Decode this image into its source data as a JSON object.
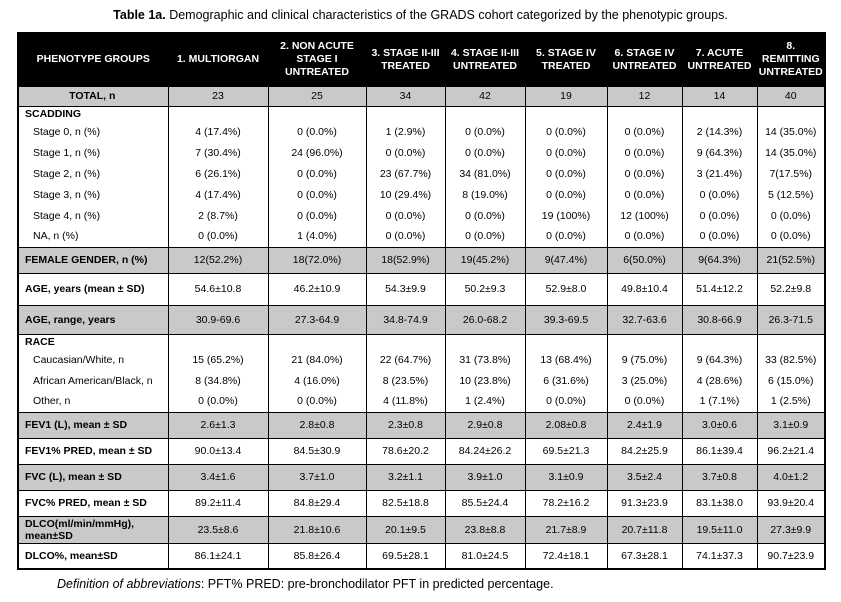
{
  "caption": {
    "label": "Table 1a.",
    "text": " Demographic and clinical characteristics of the GRADS cohort categorized by the phenotypic groups."
  },
  "colors": {
    "header_bg": "#000000",
    "header_text": "#ffffff",
    "row_shade": "#c9c9c9",
    "border": "#000000"
  },
  "table": {
    "header": [
      "PHENOTYPE GROUPS",
      "1. MULTIORGAN",
      "2. NON ACUTE STAGE I UNTREATED",
      "3. STAGE II-III TREATED",
      "4. STAGE II-III UNTREATED",
      "5. STAGE IV TREATED",
      "6. STAGE IV UNTREATED",
      "7. ACUTE UNTREATED",
      "8. REMITTING UNTREATED"
    ],
    "rows": [
      {
        "label": "TOTAL, n",
        "kind": "total",
        "shaded": true,
        "values": [
          "23",
          "25",
          "34",
          "42",
          "19",
          "12",
          "14",
          "40"
        ]
      },
      {
        "label": "SCADDING",
        "kind": "section",
        "shaded": false,
        "values": [
          "",
          "",
          "",
          "",
          "",
          "",
          "",
          ""
        ]
      },
      {
        "label": "Stage 0, n (%)",
        "kind": "sub",
        "shaded": false,
        "values": [
          "4 (17.4%)",
          "0 (0.0%)",
          "1 (2.9%)",
          "0 (0.0%)",
          "0 (0.0%)",
          "0 (0.0%)",
          "2 (14.3%)",
          "14 (35.0%)"
        ]
      },
      {
        "label": "Stage 1, n (%)",
        "kind": "sub",
        "shaded": false,
        "values": [
          "7 (30.4%)",
          "24 (96.0%)",
          "0 (0.0%)",
          "0 (0.0%)",
          "0 (0.0%)",
          "0 (0.0%)",
          "9 (64.3%)",
          "14 (35.0%)"
        ]
      },
      {
        "label": "Stage 2, n (%)",
        "kind": "sub",
        "shaded": false,
        "values": [
          "6 (26.1%)",
          "0 (0.0%)",
          "23 (67.7%)",
          "34 (81.0%)",
          "0 (0.0%)",
          "0 (0.0%)",
          "3 (21.4%)",
          "7(17.5%)"
        ]
      },
      {
        "label": "Stage 3, n (%)",
        "kind": "sub",
        "shaded": false,
        "values": [
          "4 (17.4%)",
          "0 (0.0%)",
          "10 (29.4%)",
          "8 (19.0%)",
          "0 (0.0%)",
          "0 (0.0%)",
          "0 (0.0%)",
          "5 (12.5%)"
        ]
      },
      {
        "label": "Stage 4, n (%)",
        "kind": "sub",
        "shaded": false,
        "values": [
          "2 (8.7%)",
          "0 (0.0%)",
          "0 (0.0%)",
          "0 (0.0%)",
          "19 (100%)",
          "12 (100%)",
          "0 (0.0%)",
          "0 (0.0%)"
        ]
      },
      {
        "label": "NA, n (%)",
        "kind": "sub",
        "shaded": false,
        "values": [
          "0 (0.0%)",
          "1 (4.0%)",
          "0 (0.0%)",
          "0 (0.0%)",
          "0 (0.0%)",
          "0 (0.0%)",
          "0 (0.0%)",
          "0 (0.0%)"
        ]
      },
      {
        "label": "FEMALE GENDER, n (%)",
        "kind": "major",
        "shaded": true,
        "values": [
          "12(52.2%)",
          "18(72.0%)",
          "18(52.9%)",
          "19(45.2%)",
          "9(47.4%)",
          "6(50.0%)",
          "9(64.3%)",
          "21(52.5%)"
        ]
      },
      {
        "label": "AGE, years (mean ± SD)",
        "kind": "tall",
        "shaded": false,
        "values": [
          "54.6±10.8",
          "46.2±10.9",
          "54.3±9.9",
          "50.2±9.3",
          "52.9±8.0",
          "49.8±10.4",
          "51.4±12.2",
          "52.2±9.8"
        ]
      },
      {
        "label": "AGE, range, years",
        "kind": "med",
        "shaded": true,
        "values": [
          "30.9-69.6",
          "27.3-64.9",
          "34.8-74.9",
          "26.0-68.2",
          "39.3-69.5",
          "32.7-63.6",
          "30.8-66.9",
          "26.3-71.5"
        ]
      },
      {
        "label": "RACE",
        "kind": "section",
        "shaded": false,
        "values": [
          "",
          "",
          "",
          "",
          "",
          "",
          "",
          ""
        ]
      },
      {
        "label": "Caucasian/White, n",
        "kind": "sub",
        "shaded": false,
        "values": [
          "15 (65.2%)",
          "21 (84.0%)",
          "22 (64.7%)",
          "31 (73.8%)",
          "13 (68.4%)",
          "9 (75.0%)",
          "9 (64.3%)",
          "33 (82.5%)"
        ]
      },
      {
        "label": "African American/Black, n",
        "kind": "sub",
        "shaded": false,
        "values": [
          "8 (34.8%)",
          "4 (16.0%)",
          "8 (23.5%)",
          "10 (23.8%)",
          "6 (31.6%)",
          "3 (25.0%)",
          "4 (28.6%)",
          "6 (15.0%)"
        ]
      },
      {
        "label": "Other, n",
        "kind": "sub",
        "shaded": false,
        "values": [
          "0 (0.0%)",
          "0 (0.0%)",
          "4 (11.8%)",
          "1 (2.4%)",
          "0 (0.0%)",
          "0 (0.0%)",
          "1 (7.1%)",
          "1 (2.5%)"
        ]
      },
      {
        "label": "FEV1 (L), mean ± SD",
        "kind": "major",
        "shaded": true,
        "values": [
          "2.6±1.3",
          "2.8±0.8",
          "2.3±0.8",
          "2.9±0.8",
          "2.08±0.8",
          "2.4±1.9",
          "3.0±0.6",
          "3.1±0.9"
        ]
      },
      {
        "label": "FEV1% PRED, mean ± SD",
        "kind": "major",
        "shaded": false,
        "values": [
          "90.0±13.4",
          "84.5±30.9",
          "78.6±20.2",
          "84.24±26.2",
          "69.5±21.3",
          "84.2±25.9",
          "86.1±39.4",
          "96.2±21.4"
        ]
      },
      {
        "label": "FVC (L), mean ± SD",
        "kind": "major",
        "shaded": true,
        "values": [
          "3.4±1.6",
          "3.7±1.0",
          "3.2±1.1",
          "3.9±1.0",
          "3.1±0.9",
          "3.5±2.4",
          "3.7±0.8",
          "4.0±1.2"
        ]
      },
      {
        "label": "FVC% PRED, mean ± SD",
        "kind": "major",
        "shaded": false,
        "values": [
          "89.2±11.4",
          "84.8±29.4",
          "82.5±18.8",
          "85.5±24.4",
          "78.2±16.2",
          "91.3±23.9",
          "83.1±38.0",
          "93.9±20.4"
        ]
      },
      {
        "label": "DLCO(ml/min/mmHg), mean±SD",
        "kind": "major",
        "shaded": true,
        "values": [
          "23.5±8.6",
          "21.8±10.6",
          "20.1±9.5",
          "23.8±8.8",
          "21.7±8.9",
          "20.7±11.8",
          "19.5±11.0",
          "27.3±9.9"
        ]
      },
      {
        "label": "DLCO%, mean±SD",
        "kind": "major",
        "shaded": false,
        "values": [
          "86.1±24.1",
          "85.8±26.4",
          "69.5±28.1",
          "81.0±24.5",
          "72.4±18.1",
          "67.3±28.1",
          "74.1±37.3",
          "90.7±23.9"
        ]
      }
    ]
  },
  "footnote": {
    "italic": "Definition of abbreviations",
    "text": ": PFT% PRED: pre-bronchodilator PFT in predicted percentage."
  }
}
